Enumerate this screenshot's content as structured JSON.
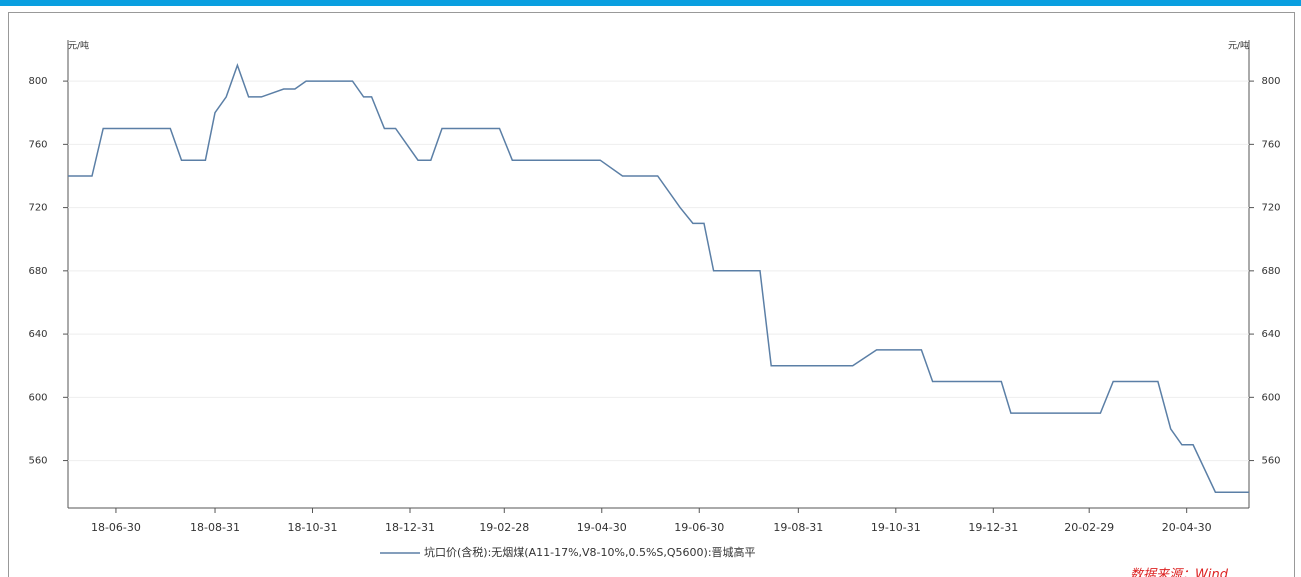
{
  "chart_data": {
    "type": "line",
    "y_unit": "元/吨",
    "x": [
      "18-05-31",
      "18-06-15",
      "18-06-22",
      "18-08-03",
      "18-08-10",
      "18-08-25",
      "18-08-31",
      "18-09-07",
      "18-09-14",
      "18-09-21",
      "18-09-29",
      "18-10-13",
      "18-10-20",
      "18-10-27",
      "18-11-25",
      "18-12-02",
      "18-12-07",
      "18-12-15",
      "18-12-22",
      "19-01-05",
      "19-01-13",
      "19-01-20",
      "19-02-25",
      "19-03-05",
      "19-04-29",
      "19-05-13",
      "19-06-04",
      "19-06-18",
      "19-06-26",
      "19-07-03",
      "19-07-09",
      "19-08-07",
      "19-08-14",
      "19-10-04",
      "19-10-19",
      "19-11-16",
      "19-11-23",
      "20-01-05",
      "20-01-11",
      "20-03-07",
      "20-03-15",
      "20-04-12",
      "20-04-20",
      "20-04-27",
      "20-05-04",
      "20-05-18",
      "20-06-08"
    ],
    "series": [
      {
        "name": "坑口价(含税):无烟煤(A11-17%,V8-10%,0.5%S,Q5600):晋城高平",
        "color": "#5b7fa6",
        "values": [
          740,
          740,
          770,
          770,
          750,
          750,
          780,
          790,
          810,
          790,
          790,
          795,
          795,
          800,
          800,
          790,
          790,
          770,
          770,
          750,
          750,
          770,
          770,
          750,
          750,
          740,
          740,
          720,
          710,
          710,
          680,
          680,
          620,
          620,
          630,
          630,
          610,
          610,
          590,
          590,
          610,
          610,
          580,
          570,
          570,
          540,
          540
        ]
      }
    ],
    "xlim": [
      "18-05-31",
      "20-06-08"
    ],
    "xticks": [
      "18-06-30",
      "18-08-31",
      "18-10-31",
      "18-12-31",
      "19-02-28",
      "19-04-30",
      "19-06-30",
      "19-08-31",
      "19-10-31",
      "19-12-31",
      "20-02-29",
      "20-04-30"
    ],
    "ylim": [
      530,
      826
    ],
    "yticks": [
      560,
      600,
      640,
      680,
      720,
      760,
      800
    ],
    "source": "数据来源：Wind"
  }
}
